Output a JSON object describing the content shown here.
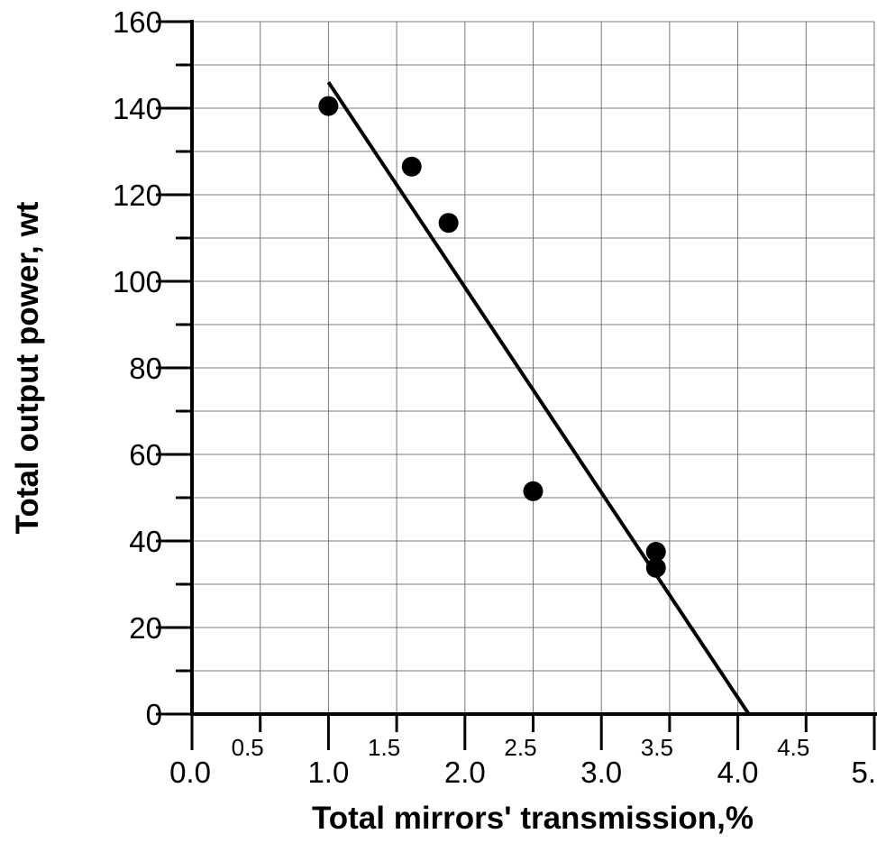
{
  "chart_data": {
    "type": "scatter",
    "xlabel": "Total mirrors' transmission,%",
    "ylabel": "Total output power, wt",
    "xlim": [
      0.0,
      5.0
    ],
    "ylim": [
      0,
      160
    ],
    "grid": true,
    "x_tick_labels_major": [
      "0.0",
      "1.0",
      "2.0",
      "3.0",
      "4.0",
      "5."
    ],
    "x_tick_labels_minor": [
      "0.5",
      "1.5",
      "2.5",
      "3.5",
      "4.5"
    ],
    "y_tick_labels": [
      "0",
      "20",
      "40",
      "60",
      "80",
      "100",
      "120",
      "140",
      "160"
    ],
    "series": [
      {
        "marker": "filled-circle",
        "color": "#000000",
        "points": [
          {
            "x": 1.0,
            "y": 140.5
          },
          {
            "x": 1.61,
            "y": 126.5
          },
          {
            "x": 1.88,
            "y": 113.5
          },
          {
            "x": 2.5,
            "y": 51.5
          },
          {
            "x": 3.4,
            "y": 37.5
          },
          {
            "x": 3.4,
            "y": 33.8
          }
        ]
      }
    ],
    "fit_line": {
      "style": "solid",
      "color": "#000000",
      "points": [
        {
          "x": 1.0,
          "y": 146
        },
        {
          "x": 4.08,
          "y": 0
        }
      ]
    }
  }
}
